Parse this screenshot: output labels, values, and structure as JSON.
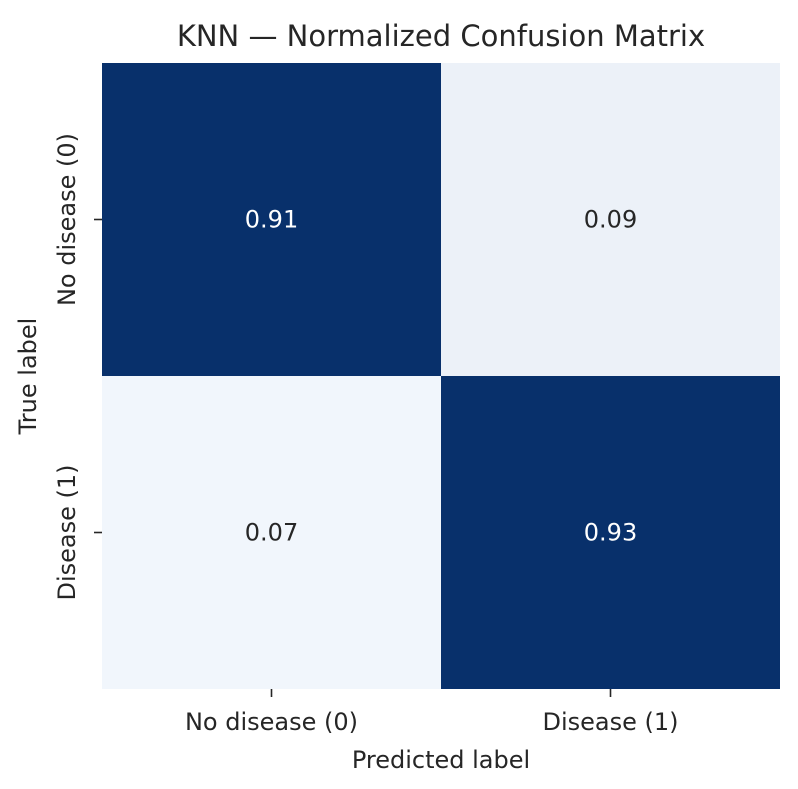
{
  "chart_data": {
    "type": "heatmap",
    "title": "KNN — Normalized Confusion Matrix",
    "xlabel": "Predicted label",
    "ylabel": "True label",
    "x_categories": [
      "No disease (0)",
      "Disease (1)"
    ],
    "y_categories": [
      "No disease (0)",
      "Disease (1)"
    ],
    "values": [
      [
        0.91,
        0.09
      ],
      [
        0.07,
        0.93
      ]
    ],
    "value_labels": [
      [
        "0.91",
        "0.09"
      ],
      [
        "0.07",
        "0.93"
      ]
    ],
    "colormap": "Blues",
    "vmin": 0,
    "vmax": 1,
    "colorbar": false,
    "colors": {
      "low": "#f7fbff",
      "high": "#08306b",
      "text_on_dark": "#ffffff",
      "text_on_light": "#262626",
      "text_default": "#262626"
    }
  }
}
